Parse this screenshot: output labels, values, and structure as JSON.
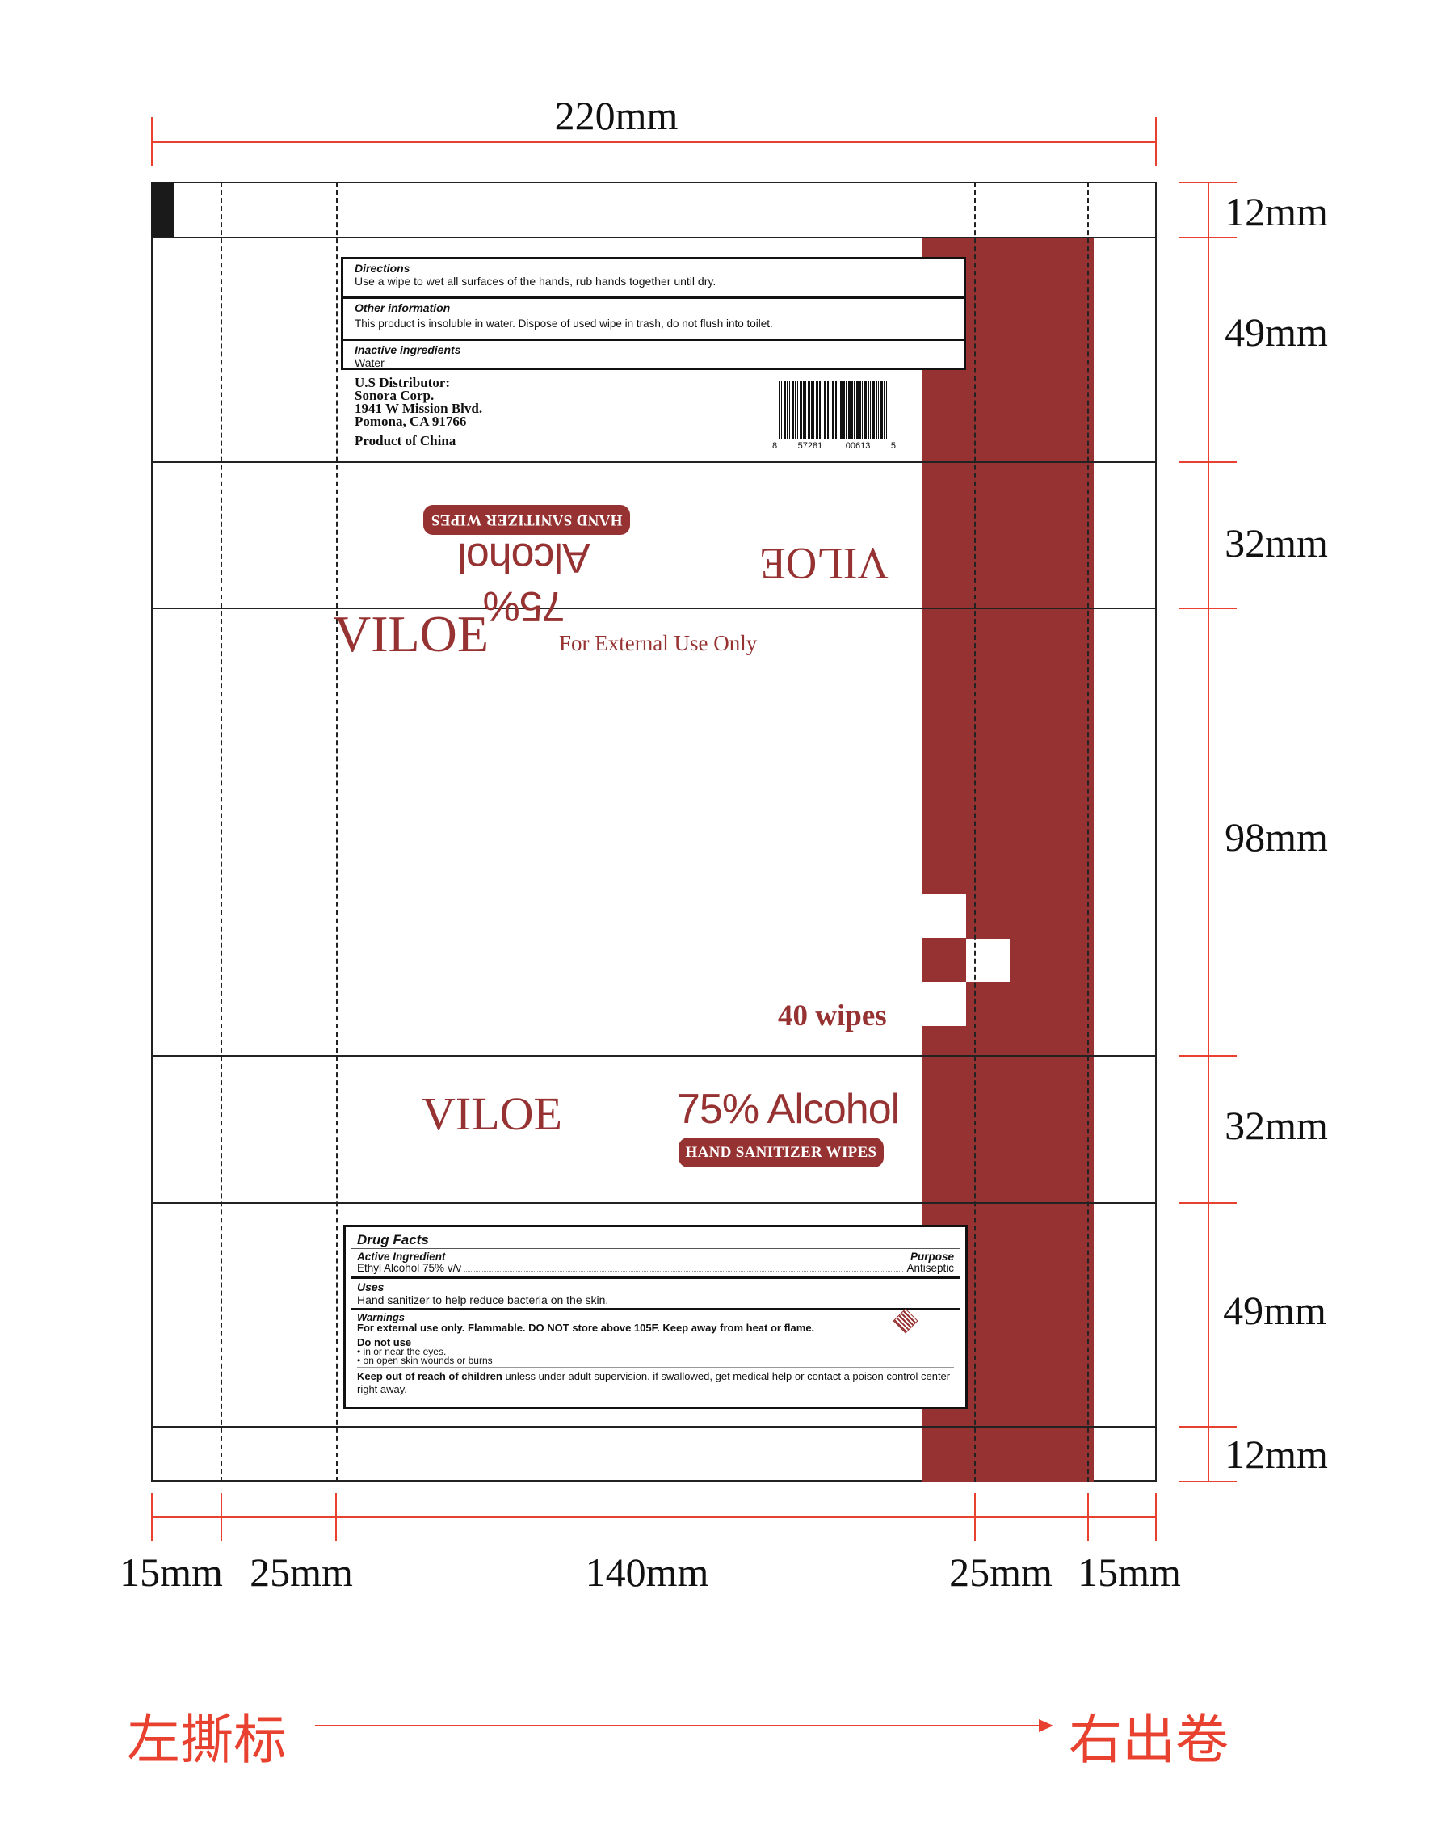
{
  "dimensions": {
    "total_width": "220mm",
    "heights": [
      "12mm",
      "49mm",
      "32mm",
      "98mm",
      "32mm",
      "49mm",
      "12mm"
    ],
    "widths": [
      "15mm",
      "25mm",
      "140mm",
      "25mm",
      "15mm"
    ]
  },
  "colors": {
    "brand_red": "#963232",
    "dimension_red": "#e8412f"
  },
  "directions_box": {
    "directions_title": "Directions",
    "directions_text": "Use a wipe to wet all surfaces of the hands, rub hands together until dry.",
    "other_title": "Other information",
    "other_text": "This product is insoluble in water. Dispose of used wipe in trash, do not flush into toilet.",
    "inactive_title": "Inactive ingredients",
    "inactive_text": "Water"
  },
  "distributor": {
    "line1": "U.S Distributor:",
    "line2": "Sonora Corp.",
    "line3": "1941 W Mission Blvd.",
    "line4": "Pomona, CA 91766",
    "origin": "Product of China"
  },
  "barcode": {
    "d1": "8",
    "d2": "57281",
    "d3": "00613",
    "d4": "5"
  },
  "brand": "VILOE",
  "alcohol": "75% Alcohol",
  "product_type": "HAND SANITIZER WIPES",
  "external_use": "For External Use Only",
  "count": "40 wipes",
  "drug_facts": {
    "title": "Drug Facts",
    "active_title": "Active Ingredient",
    "purpose_title": "Purpose",
    "active_text": "Ethyl Alcohol 75% v/v",
    "purpose_text": "Antiseptic",
    "uses_title": "Uses",
    "uses_text": "Hand sanitizer to help reduce bacteria on the skin.",
    "warnings_title": "Warnings",
    "warnings_text": "For external use only. Flammable. DO NOT store above 105F. Keep away from heat or flame.",
    "do_not_use_title": "Do not use",
    "do_not_use_1": "in or near the eyes.",
    "do_not_use_2": "on open skin wounds or burns",
    "keep_out_title": "Keep out of reach of children",
    "keep_out_text": " unless under adult supervision. if swallowed, get medical help or contact a poison control center right away."
  },
  "footer": {
    "left_label": "左撕标",
    "right_label": "右出卷"
  }
}
